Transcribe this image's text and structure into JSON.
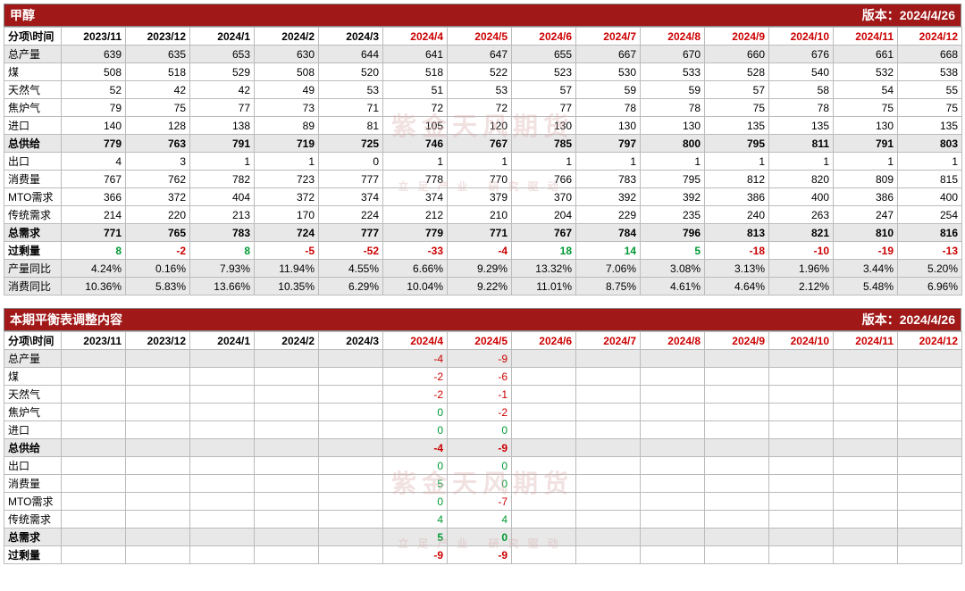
{
  "version_label_prefix": "版本：",
  "version_date": "2024/4/26",
  "watermark_main": "紫金天风期货",
  "watermark_sub": "立足产业 研究驱动",
  "table1": {
    "title": "甲醇",
    "header_label": "分项\\时间",
    "periods": [
      "2023/11",
      "2023/12",
      "2024/1",
      "2024/2",
      "2024/3",
      "2024/4",
      "2024/5",
      "2024/6",
      "2024/7",
      "2024/8",
      "2024/9",
      "2024/10",
      "2024/11",
      "2024/12"
    ],
    "future_start_index": 5,
    "rows": [
      {
        "label": "总产量",
        "bold": false,
        "shade": true,
        "vals": [
          "639",
          "635",
          "653",
          "630",
          "644",
          "641",
          "647",
          "655",
          "667",
          "670",
          "660",
          "676",
          "661",
          "668"
        ]
      },
      {
        "label": "煤",
        "vals": [
          "508",
          "518",
          "529",
          "508",
          "520",
          "518",
          "522",
          "523",
          "530",
          "533",
          "528",
          "540",
          "532",
          "538"
        ]
      },
      {
        "label": "天然气",
        "vals": [
          "52",
          "42",
          "42",
          "49",
          "53",
          "51",
          "53",
          "57",
          "59",
          "59",
          "57",
          "58",
          "54",
          "55"
        ]
      },
      {
        "label": "焦炉气",
        "vals": [
          "79",
          "75",
          "77",
          "73",
          "71",
          "72",
          "72",
          "77",
          "78",
          "78",
          "75",
          "78",
          "75",
          "75"
        ]
      },
      {
        "label": "进口",
        "vals": [
          "140",
          "128",
          "138",
          "89",
          "81",
          "105",
          "120",
          "130",
          "130",
          "130",
          "135",
          "135",
          "130",
          "135"
        ]
      },
      {
        "label": "总供给",
        "bold": true,
        "shade": true,
        "vals": [
          "779",
          "763",
          "791",
          "719",
          "725",
          "746",
          "767",
          "785",
          "797",
          "800",
          "795",
          "811",
          "791",
          "803"
        ]
      },
      {
        "label": "出口",
        "vals": [
          "4",
          "3",
          "1",
          "1",
          "0",
          "1",
          "1",
          "1",
          "1",
          "1",
          "1",
          "1",
          "1",
          "1"
        ]
      },
      {
        "label": "消费量",
        "vals": [
          "767",
          "762",
          "782",
          "723",
          "777",
          "778",
          "770",
          "766",
          "783",
          "795",
          "812",
          "820",
          "809",
          "815"
        ]
      },
      {
        "label": "MTO需求",
        "vals": [
          "366",
          "372",
          "404",
          "372",
          "374",
          "374",
          "379",
          "370",
          "392",
          "392",
          "386",
          "400",
          "386",
          "400"
        ]
      },
      {
        "label": "传统需求",
        "vals": [
          "214",
          "220",
          "213",
          "170",
          "224",
          "212",
          "210",
          "204",
          "229",
          "235",
          "240",
          "263",
          "247",
          "254"
        ]
      },
      {
        "label": "总需求",
        "bold": true,
        "shade": true,
        "vals": [
          "771",
          "765",
          "783",
          "724",
          "777",
          "779",
          "771",
          "767",
          "784",
          "796",
          "813",
          "821",
          "810",
          "816"
        ]
      },
      {
        "label": "过剩量",
        "bold": true,
        "color": true,
        "vals": [
          "8",
          "-2",
          "8",
          "-5",
          "-52",
          "-33",
          "-4",
          "18",
          "14",
          "5",
          "-18",
          "-10",
          "-19",
          "-13"
        ]
      },
      {
        "label": "产量同比",
        "shade": true,
        "vals": [
          "4.24%",
          "0.16%",
          "7.93%",
          "11.94%",
          "4.55%",
          "6.66%",
          "9.29%",
          "13.32%",
          "7.06%",
          "3.08%",
          "3.13%",
          "1.96%",
          "3.44%",
          "5.20%"
        ]
      },
      {
        "label": "消费同比",
        "shade": true,
        "vals": [
          "10.36%",
          "5.83%",
          "13.66%",
          "10.35%",
          "6.29%",
          "10.04%",
          "9.22%",
          "11.01%",
          "8.75%",
          "4.61%",
          "4.64%",
          "2.12%",
          "5.48%",
          "6.96%"
        ]
      }
    ]
  },
  "table2": {
    "title": "本期平衡表调整内容",
    "header_label": "分项\\时间",
    "periods": [
      "2023/11",
      "2023/12",
      "2024/1",
      "2024/2",
      "2024/3",
      "2024/4",
      "2024/5",
      "2024/6",
      "2024/7",
      "2024/8",
      "2024/9",
      "2024/10",
      "2024/11",
      "2024/12"
    ],
    "future_start_index": 5,
    "rows": [
      {
        "label": "总产量",
        "shade": true,
        "color": true,
        "vals": [
          "",
          "",
          "",
          "",
          "",
          "-4",
          "-9",
          "",
          "",
          "",
          "",
          "",
          "",
          ""
        ]
      },
      {
        "label": "煤",
        "color": true,
        "vals": [
          "",
          "",
          "",
          "",
          "",
          "-2",
          "-6",
          "",
          "",
          "",
          "",
          "",
          "",
          ""
        ]
      },
      {
        "label": "天然气",
        "color": true,
        "vals": [
          "",
          "",
          "",
          "",
          "",
          "-2",
          "-1",
          "",
          "",
          "",
          "",
          "",
          "",
          ""
        ]
      },
      {
        "label": "焦炉气",
        "color": true,
        "vals": [
          "",
          "",
          "",
          "",
          "",
          "0",
          "-2",
          "",
          "",
          "",
          "",
          "",
          "",
          ""
        ]
      },
      {
        "label": "进口",
        "color": true,
        "vals": [
          "",
          "",
          "",
          "",
          "",
          "0",
          "0",
          "",
          "",
          "",
          "",
          "",
          "",
          ""
        ]
      },
      {
        "label": "总供给",
        "bold": true,
        "shade": true,
        "color": true,
        "vals": [
          "",
          "",
          "",
          "",
          "",
          "-4",
          "-9",
          "",
          "",
          "",
          "",
          "",
          "",
          ""
        ]
      },
      {
        "label": "出口",
        "color": true,
        "vals": [
          "",
          "",
          "",
          "",
          "",
          "0",
          "0",
          "",
          "",
          "",
          "",
          "",
          "",
          ""
        ]
      },
      {
        "label": "消费量",
        "color": true,
        "vals": [
          "",
          "",
          "",
          "",
          "",
          "5",
          "0",
          "",
          "",
          "",
          "",
          "",
          "",
          ""
        ]
      },
      {
        "label": "MTO需求",
        "color": true,
        "vals": [
          "",
          "",
          "",
          "",
          "",
          "0",
          "-7",
          "",
          "",
          "",
          "",
          "",
          "",
          ""
        ]
      },
      {
        "label": "传统需求",
        "color": true,
        "vals": [
          "",
          "",
          "",
          "",
          "",
          "4",
          "4",
          "",
          "",
          "",
          "",
          "",
          "",
          ""
        ]
      },
      {
        "label": "总需求",
        "bold": true,
        "shade": true,
        "color": true,
        "vals": [
          "",
          "",
          "",
          "",
          "",
          "5",
          "0",
          "",
          "",
          "",
          "",
          "",
          "",
          ""
        ]
      },
      {
        "label": "过剩量",
        "bold": true,
        "color": true,
        "vals": [
          "",
          "",
          "",
          "",
          "",
          "-9",
          "-9",
          "",
          "",
          "",
          "",
          "",
          "",
          ""
        ]
      }
    ]
  }
}
